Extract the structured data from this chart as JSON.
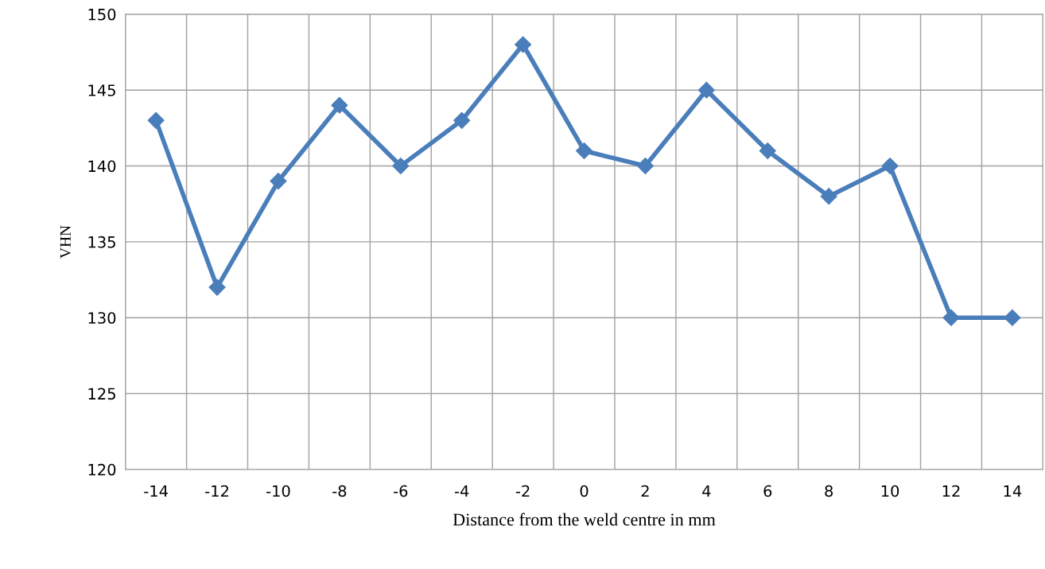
{
  "chart_data": {
    "type": "line",
    "xlabel": "Distance from the weld centre in mm",
    "ylabel": "VHN",
    "categories": [
      "-14",
      "-12",
      "-10",
      "-8",
      "-6",
      "-4",
      "-2",
      "0",
      "2",
      "4",
      "6",
      "8",
      "10",
      "12",
      "14"
    ],
    "series": [
      {
        "color": "#4a7ebb",
        "values": [
          143,
          132,
          139,
          144,
          140,
          143,
          148,
          141,
          140,
          145,
          141,
          138,
          140,
          130,
          130
        ]
      }
    ],
    "ylim": [
      120,
      150
    ],
    "yticks": [
      120,
      125,
      130,
      135,
      140,
      145,
      150
    ],
    "grid": true,
    "marker": "diamond",
    "line_style": "solid"
  }
}
